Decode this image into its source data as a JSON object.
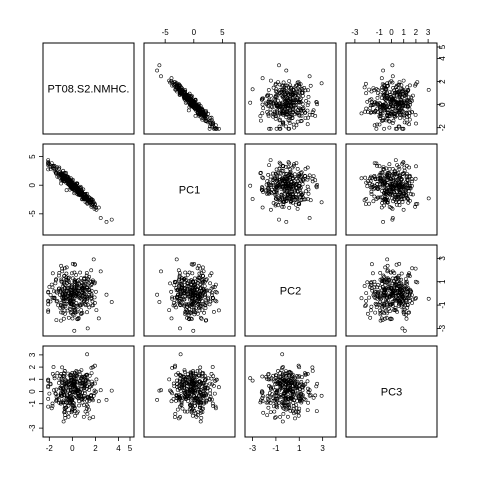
{
  "chart_data": {
    "type": "scatter-matrix",
    "title": "",
    "variables": [
      "PT08.S2.NMHC.",
      "PC1",
      "PC2",
      "PC3"
    ],
    "ranges": {
      "PT08.S2.NMHC.": [
        -2.2,
        5.0
      ],
      "PC1": [
        -8.0,
        6.5
      ],
      "PC2": [
        -3.3,
        3.8
      ],
      "PC3": [
        -3.4,
        3.4
      ]
    },
    "ticks": {
      "PT08.S2.NMHC.": {
        "values": [
          -2,
          0,
          2,
          4,
          5
        ],
        "labels": [
          "-2",
          "0",
          "2",
          "4",
          "5"
        ]
      },
      "PC1": {
        "values": [
          -5,
          0,
          5
        ],
        "labels": [
          "-5",
          "0",
          "5"
        ]
      },
      "PC2": {
        "values": [
          -3,
          -1,
          1,
          3
        ],
        "labels": [
          "-3",
          "-1",
          "1",
          "3"
        ]
      },
      "PC3": {
        "values": [
          -3,
          -1,
          0,
          1,
          2,
          3
        ],
        "labels": [
          "-3",
          "-1",
          "0",
          "1",
          "2",
          "3"
        ]
      }
    },
    "relationships": {
      "PT08.S2.NMHC.|PC1": {
        "correlation": -0.98
      },
      "PT08.S2.NMHC.|PC2": {
        "correlation": 0.0
      },
      "PT08.S2.NMHC.|PC3": {
        "correlation": -0.05
      },
      "PC1|PC2": {
        "correlation": 0.0
      },
      "PC1|PC3": {
        "correlation": 0.0
      },
      "PC2|PC3": {
        "correlation": 0.0
      }
    },
    "grid": false,
    "legend": "none"
  }
}
